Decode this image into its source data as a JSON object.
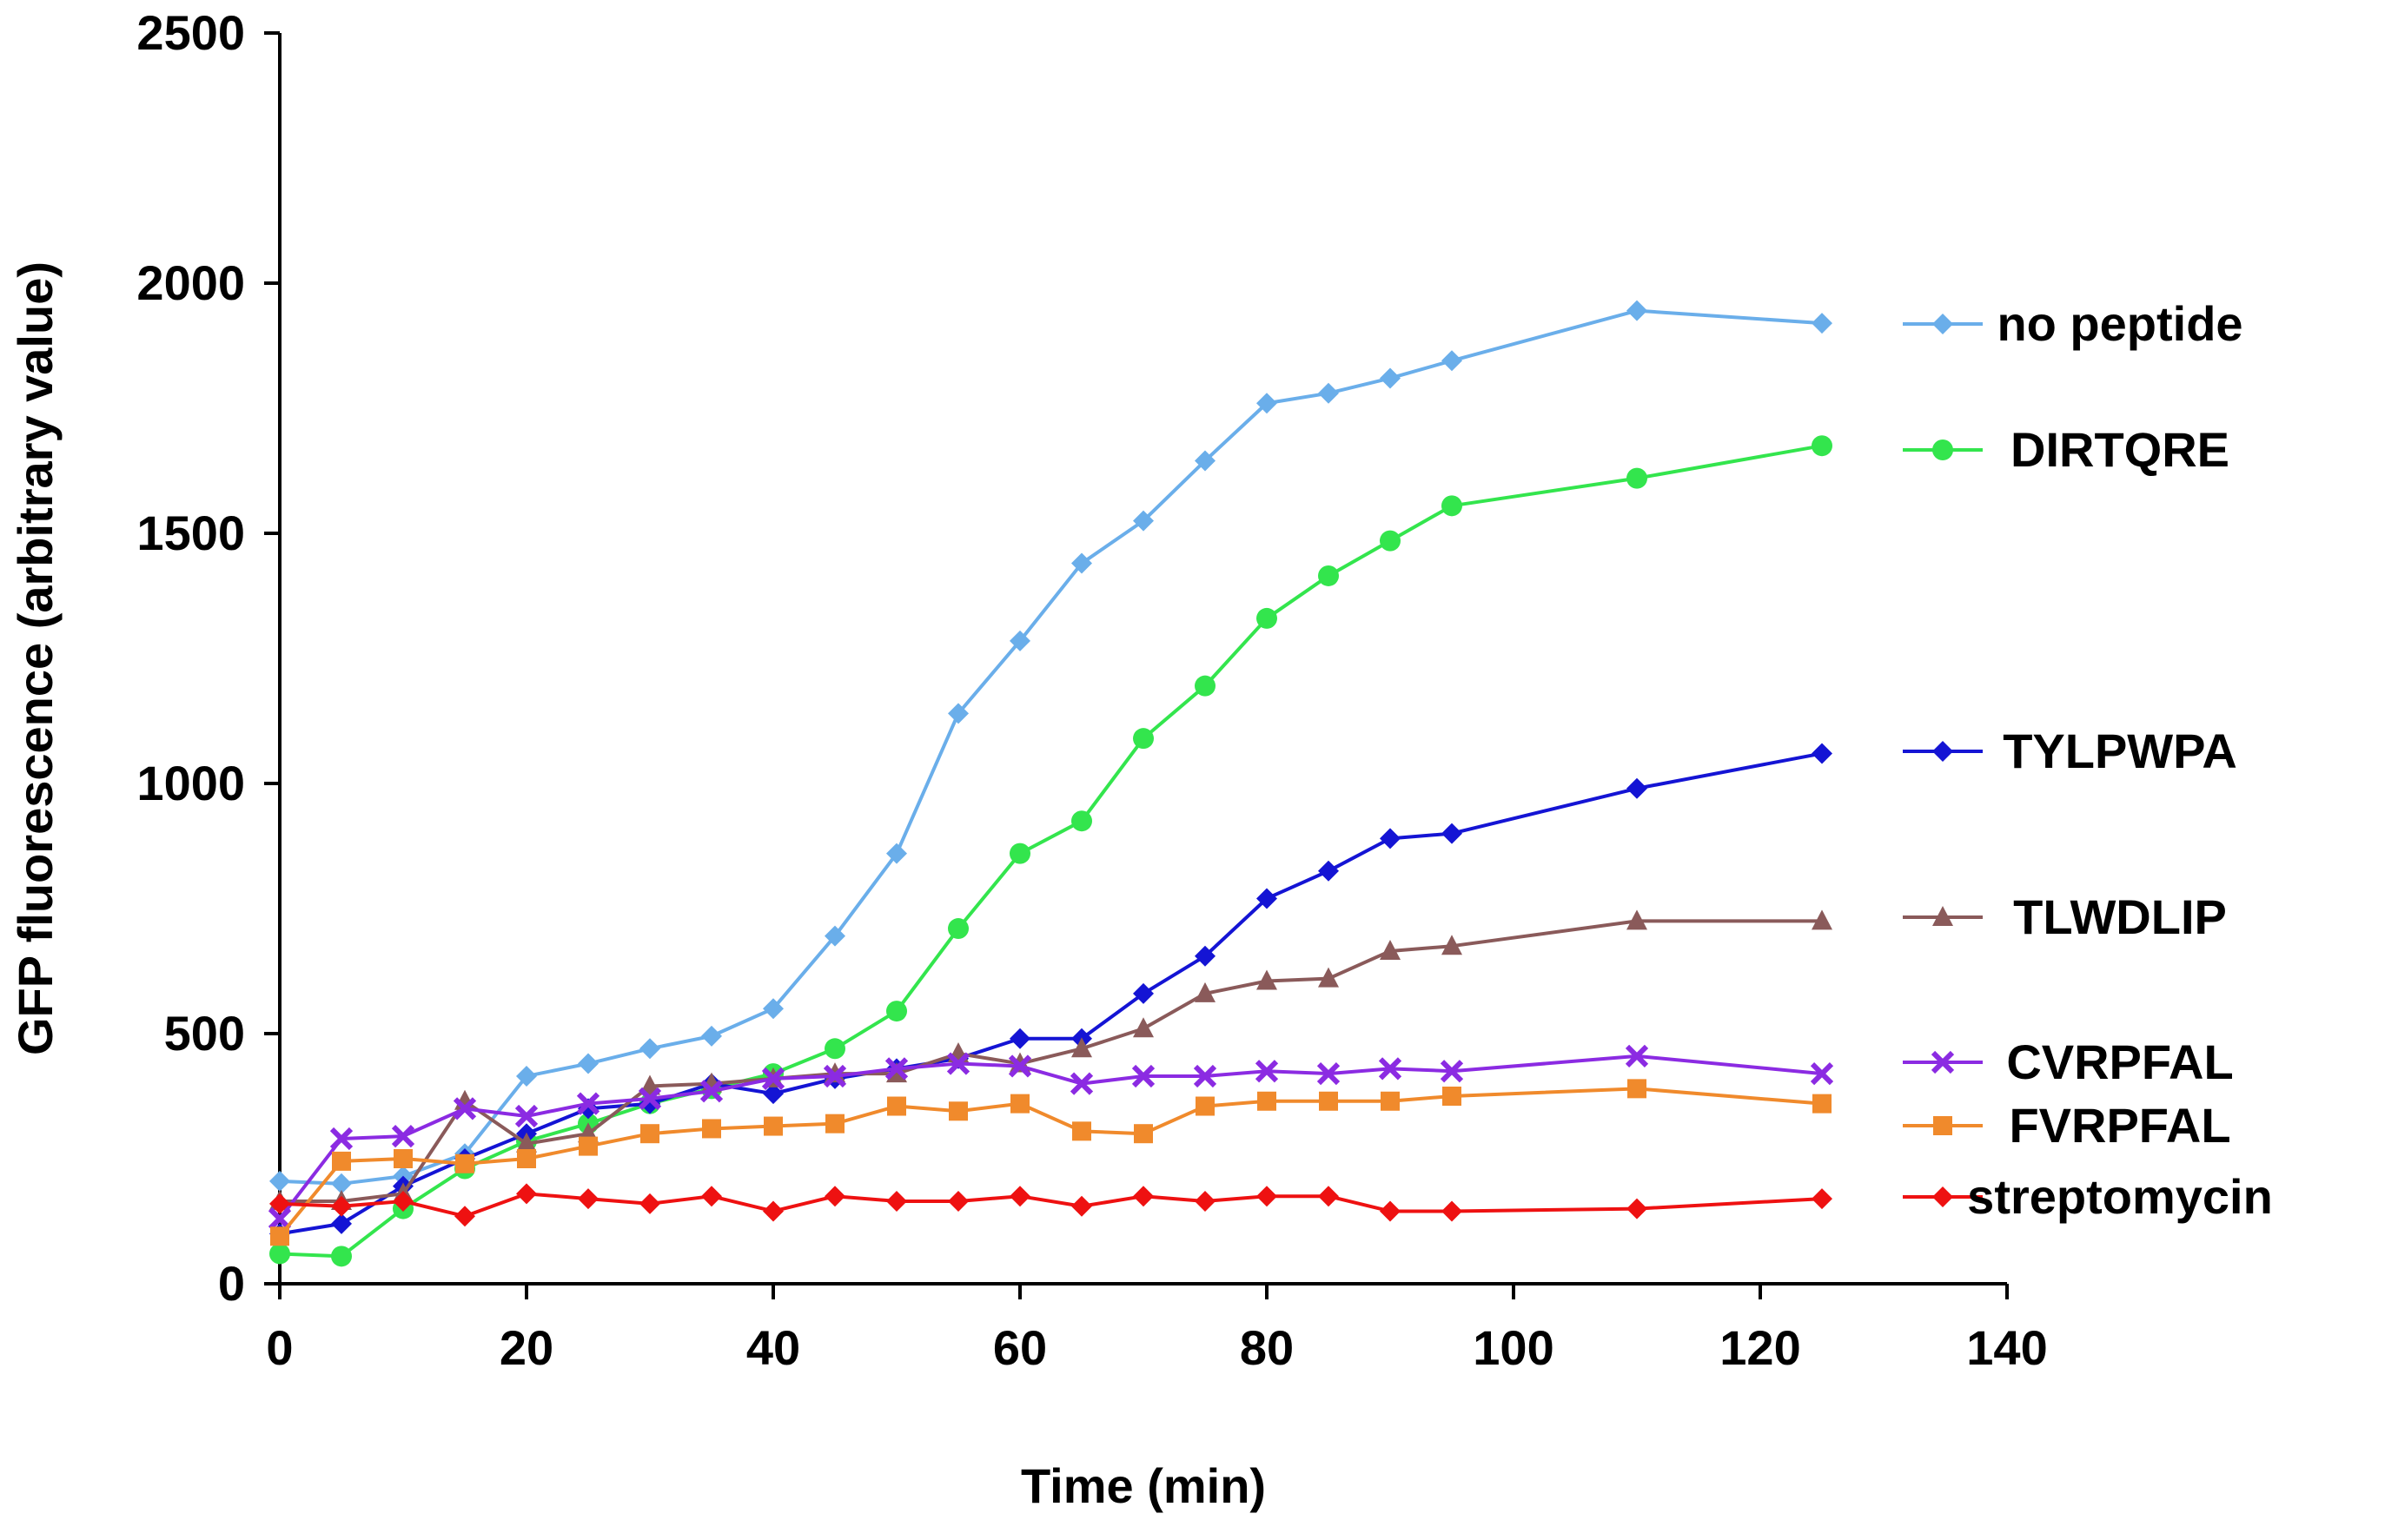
{
  "chart_data": {
    "type": "line",
    "title": "",
    "xlabel": "Time (min)",
    "ylabel": "GFP fluorescence (arbitrary value)",
    "xlim": [
      0,
      140
    ],
    "ylim": [
      0,
      2500
    ],
    "xticks": [
      0,
      20,
      40,
      60,
      80,
      100,
      120,
      140
    ],
    "yticks": [
      0,
      500,
      1000,
      1500,
      2000,
      2500
    ],
    "grid": false,
    "legend_position": "right",
    "x": [
      0,
      5,
      10,
      15,
      20,
      25,
      30,
      35,
      40,
      45,
      50,
      55,
      60,
      65,
      70,
      75,
      80,
      85,
      90,
      95,
      110,
      125
    ],
    "series": [
      {
        "name": "no peptide",
        "color": "#6aaeea",
        "marker": "diamond",
        "values": [
          205,
          200,
          215,
          260,
          415,
          440,
          470,
          495,
          550,
          695,
          860,
          1140,
          1285,
          1440,
          1525,
          1645,
          1760,
          1780,
          1810,
          1845,
          1945,
          1920
        ]
      },
      {
        "name": "DIRTQRE",
        "color": "#33e54d",
        "marker": "circle",
        "values": [
          60,
          55,
          150,
          230,
          285,
          320,
          360,
          390,
          420,
          470,
          545,
          710,
          860,
          925,
          1090,
          1195,
          1330,
          1415,
          1485,
          1555,
          1610,
          1675
        ]
      },
      {
        "name": "TYLPWPA",
        "color": "#1414d4",
        "marker": "diamond",
        "values": [
          100,
          120,
          195,
          250,
          300,
          350,
          360,
          400,
          380,
          410,
          430,
          450,
          490,
          490,
          580,
          655,
          770,
          825,
          890,
          900,
          990,
          1060
        ]
      },
      {
        "name": "TLWDLIP",
        "color": "#8a5a5a",
        "marker": "triangle",
        "values": [
          165,
          165,
          180,
          365,
          280,
          300,
          395,
          400,
          410,
          420,
          420,
          460,
          440,
          470,
          510,
          580,
          605,
          610,
          665,
          675,
          725,
          725
        ]
      },
      {
        "name": "CVRPFAL",
        "color": "#8b2be2",
        "marker": "x",
        "values": [
          130,
          290,
          295,
          350,
          335,
          360,
          370,
          385,
          410,
          415,
          430,
          440,
          435,
          400,
          415,
          415,
          425,
          420,
          430,
          425,
          455,
          420
        ]
      },
      {
        "name": "FVRPFAL",
        "color": "#f08a2c",
        "marker": "square",
        "values": [
          95,
          245,
          250,
          240,
          250,
          275,
          300,
          310,
          315,
          320,
          355,
          345,
          360,
          305,
          300,
          355,
          365,
          365,
          365,
          375,
          390,
          360
        ]
      },
      {
        "name": "streptomycin",
        "color": "#ee1111",
        "marker": "diamond",
        "values": [
          160,
          155,
          165,
          135,
          180,
          170,
          160,
          175,
          145,
          175,
          165,
          165,
          175,
          155,
          175,
          165,
          175,
          175,
          145,
          145,
          150,
          170
        ]
      }
    ]
  }
}
